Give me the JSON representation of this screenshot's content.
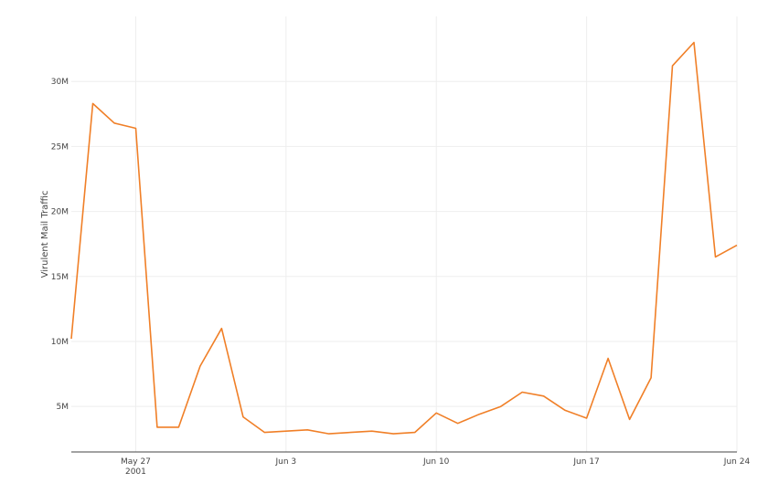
{
  "chart_data": {
    "type": "line",
    "title": "",
    "xlabel": "",
    "ylabel": "Virulent Mail Traffic",
    "x_tick_labels": [
      {
        "date": "2001-05-27",
        "label": "May 27",
        "sublabel": "2001"
      },
      {
        "date": "2001-06-03",
        "label": "Jun 3",
        "sublabel": ""
      },
      {
        "date": "2001-06-10",
        "label": "Jun 10",
        "sublabel": ""
      },
      {
        "date": "2001-06-17",
        "label": "Jun 17",
        "sublabel": ""
      },
      {
        "date": "2001-06-24",
        "label": "Jun 24",
        "sublabel": ""
      }
    ],
    "y_tick_labels": [
      {
        "value": 5000000,
        "label": "5M"
      },
      {
        "value": 10000000,
        "label": "10M"
      },
      {
        "value": 15000000,
        "label": "15M"
      },
      {
        "value": 20000000,
        "label": "20M"
      },
      {
        "value": 25000000,
        "label": "25M"
      },
      {
        "value": 30000000,
        "label": "30M"
      }
    ],
    "xlim": [
      "2001-05-24",
      "2001-06-24"
    ],
    "ylim": [
      1500000,
      35000000
    ],
    "grid": true,
    "line_color": "#f07f27",
    "series": [
      {
        "x": [
          "2001-05-24",
          "2001-05-25",
          "2001-05-26",
          "2001-05-27",
          "2001-05-28",
          "2001-05-29",
          "2001-05-30",
          "2001-05-31",
          "2001-06-01",
          "2001-06-02",
          "2001-06-03",
          "2001-06-04",
          "2001-06-05",
          "2001-06-06",
          "2001-06-07",
          "2001-06-08",
          "2001-06-09",
          "2001-06-10",
          "2001-06-11",
          "2001-06-12",
          "2001-06-13",
          "2001-06-14",
          "2001-06-15",
          "2001-06-16",
          "2001-06-17",
          "2001-06-18",
          "2001-06-19",
          "2001-06-20",
          "2001-06-21",
          "2001-06-22",
          "2001-06-23",
          "2001-06-24"
        ],
        "y": [
          10200000,
          28300000,
          26800000,
          26400000,
          3400000,
          3400000,
          8100000,
          11000000,
          4200000,
          3000000,
          3100000,
          3200000,
          2900000,
          3000000,
          3100000,
          2900000,
          3000000,
          4500000,
          3700000,
          4400000,
          5000000,
          6100000,
          5800000,
          4700000,
          4100000,
          8700000,
          4000000,
          7200000,
          31200000,
          33000000,
          16500000,
          17400000
        ]
      }
    ]
  }
}
